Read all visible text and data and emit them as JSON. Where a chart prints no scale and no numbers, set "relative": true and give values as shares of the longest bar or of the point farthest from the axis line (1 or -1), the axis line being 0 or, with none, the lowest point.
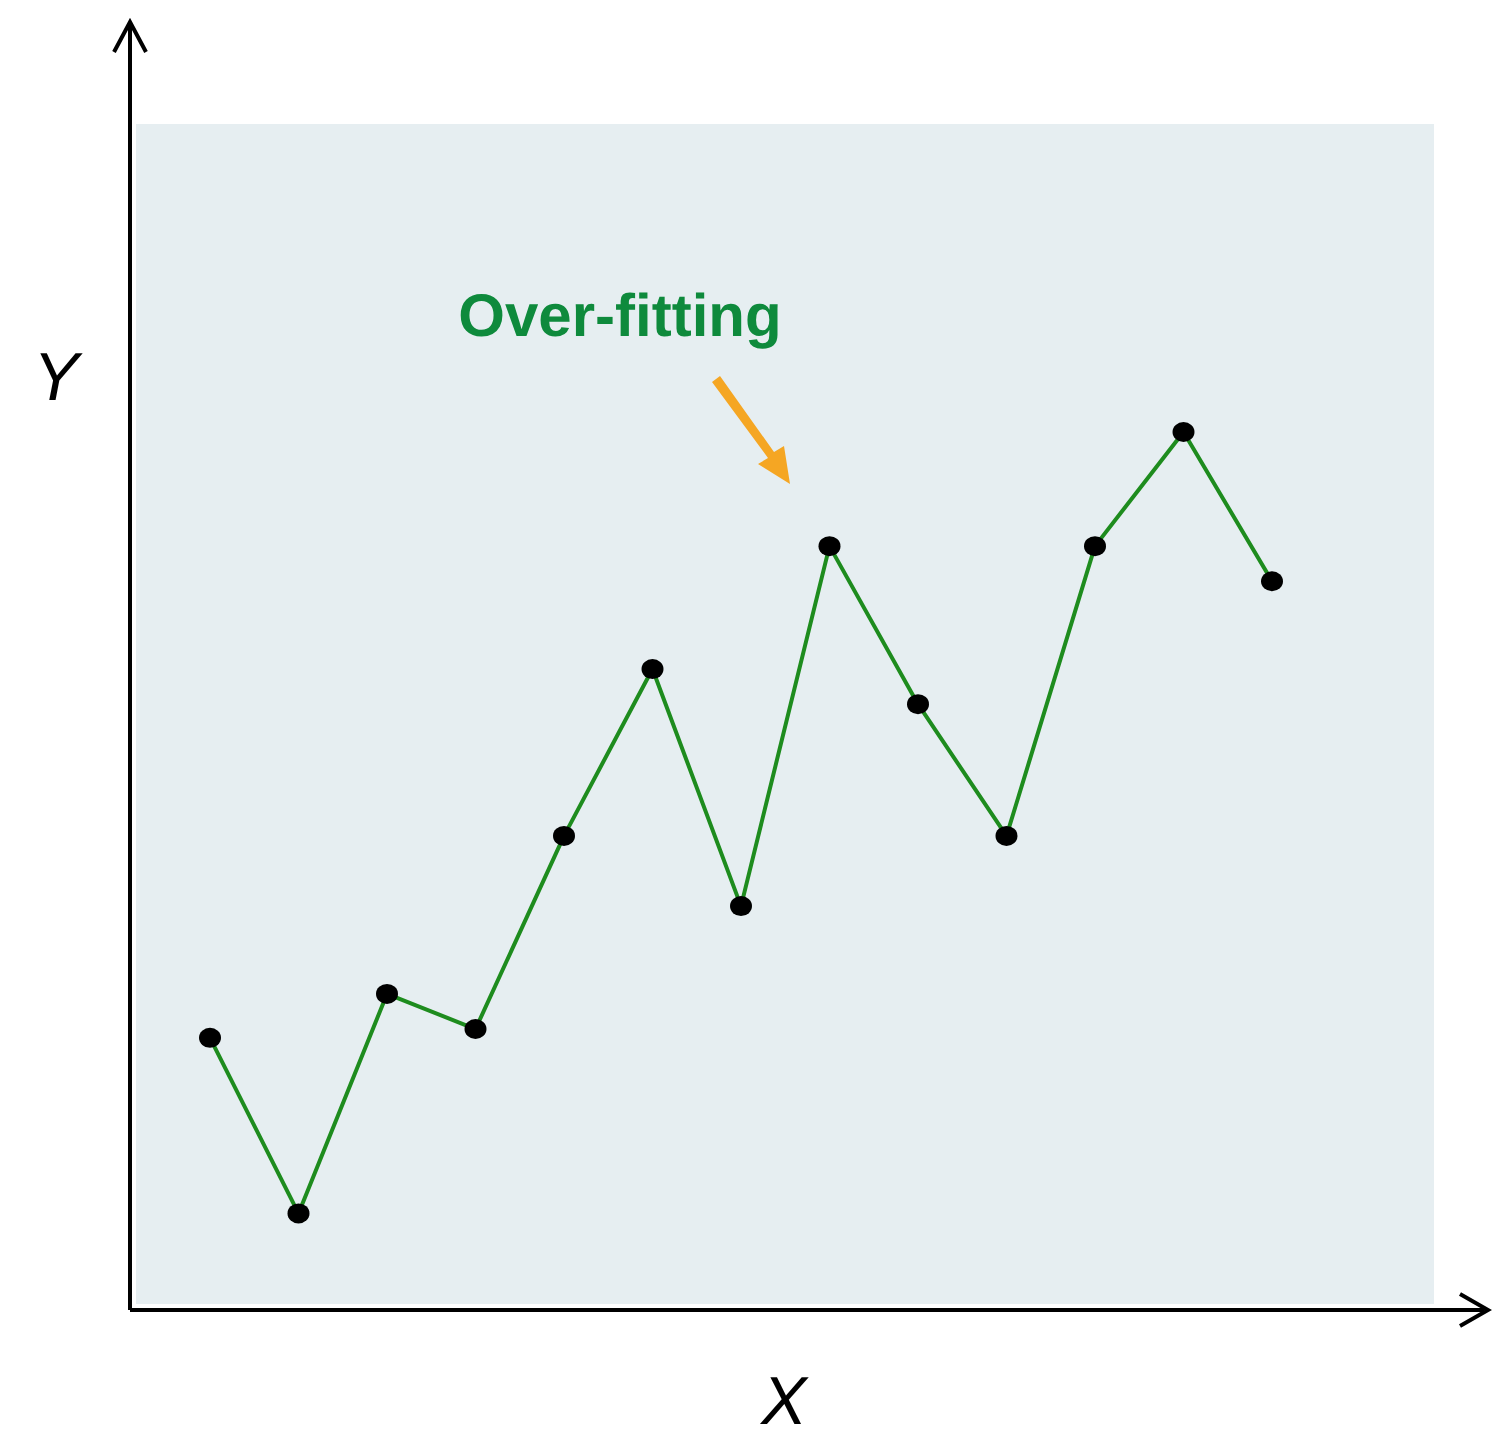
{
  "chart_data": {
    "type": "line",
    "relative": true,
    "xlabel": "X",
    "ylabel": "Y",
    "marker": "circle",
    "annotations": [
      "Over-fitting"
    ],
    "categories": [
      null,
      null,
      null,
      null,
      null,
      null,
      null,
      null,
      null,
      null,
      null,
      null,
      null
    ],
    "series": [
      {
        "color": "#1e8c1e",
        "values": [
          0.31,
          0.11,
          0.36,
          0.32,
          0.54,
          0.73,
          0.46,
          0.87,
          0.69,
          0.54,
          0.87,
          1,
          0.83
        ]
      }
    ]
  }
}
